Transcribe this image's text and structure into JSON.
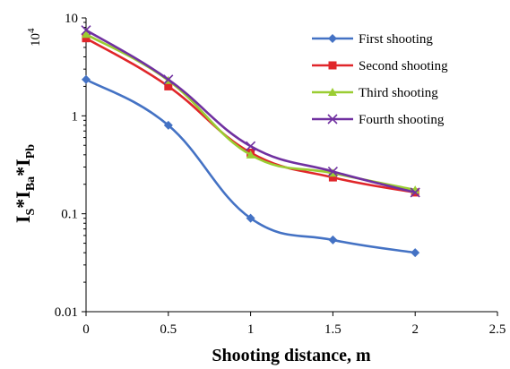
{
  "chart_data": {
    "type": "line",
    "title": "",
    "xlabel": "Shooting distance, m",
    "ylabel": {
      "parts": [
        {
          "text": "I",
          "sub": false
        },
        {
          "text": "S",
          "sub": true
        },
        {
          "text": "*I",
          "sub": false
        },
        {
          "text": "Ba",
          "sub": true
        },
        {
          "text": "*I",
          "sub": false
        },
        {
          "text": "Pb",
          "sub": true
        }
      ]
    },
    "yunit": "10",
    "yunit_exp": "4",
    "xscale": "linear",
    "yscale": "log",
    "xlim": [
      0,
      2.5
    ],
    "ylim": [
      0.01,
      10
    ],
    "xticks": [
      0,
      0.5,
      1,
      1.5,
      2,
      2.5
    ],
    "xtick_labels": [
      "0",
      "0.5",
      "1",
      "1.5",
      "2",
      "2.5"
    ],
    "yticks": [
      0.01,
      0.1,
      1,
      10
    ],
    "ytick_labels": [
      "0.01",
      "0.1",
      "1",
      "10"
    ],
    "grid": false,
    "legend_position": "top-right",
    "x": [
      0,
      0.5,
      1,
      1.5,
      2
    ],
    "series": [
      {
        "name": "First shooting",
        "color": "#4472C4",
        "marker": "diamond",
        "values": [
          2.35,
          0.8,
          0.09,
          0.054,
          0.04
        ]
      },
      {
        "name": "Second shooting",
        "color": "#E0262A",
        "marker": "square",
        "values": [
          6.2,
          2.0,
          0.42,
          0.235,
          0.165
        ]
      },
      {
        "name": "Third shooting",
        "color": "#9ACD32",
        "marker": "triangle",
        "values": [
          6.8,
          2.3,
          0.4,
          0.26,
          0.175
        ]
      },
      {
        "name": "Fourth shooting",
        "color": "#7030A0",
        "marker": "x",
        "values": [
          7.5,
          2.35,
          0.49,
          0.27,
          0.165
        ]
      }
    ]
  }
}
